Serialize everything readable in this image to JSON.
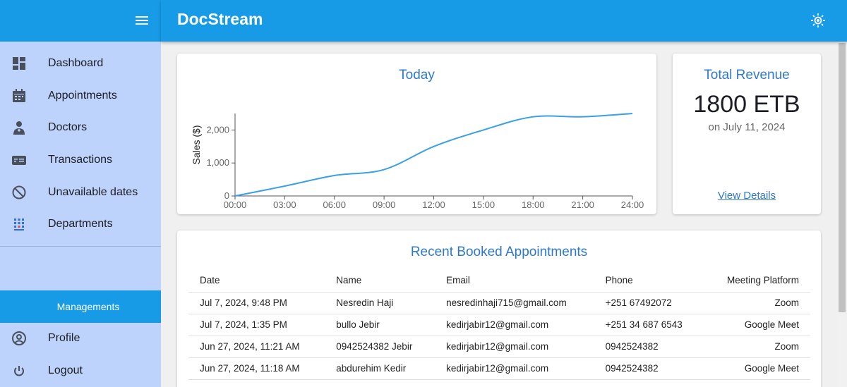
{
  "header": {
    "title": "DocStream"
  },
  "sidebar": {
    "items": [
      {
        "label": "Dashboard",
        "icon": "dashboard-icon"
      },
      {
        "label": "Appointments",
        "icon": "calendar-icon"
      },
      {
        "label": "Doctors",
        "icon": "doctor-icon"
      },
      {
        "label": "Transactions",
        "icon": "card-icon"
      },
      {
        "label": "Unavailable dates",
        "icon": "block-icon"
      },
      {
        "label": "Departments",
        "icon": "departments-icon"
      }
    ],
    "managements_label": "Managements",
    "profile_label": "Profile",
    "logout_label": "Logout"
  },
  "chart_card": {
    "title": "Today"
  },
  "chart_data": {
    "type": "line",
    "title": "Today",
    "xlabel": "",
    "ylabel": "Sales ($)",
    "x": [
      "00:00",
      "03:00",
      "06:00",
      "09:00",
      "12:00",
      "15:00",
      "18:00",
      "21:00",
      "24:00"
    ],
    "y": [
      0,
      300,
      620,
      800,
      1500,
      2000,
      2400,
      2400,
      2500
    ],
    "xlim": [
      "00:00",
      "24:00"
    ],
    "ylim": [
      0,
      2500
    ],
    "yticks": [
      "0",
      "1,000",
      "2,000"
    ],
    "grid": false,
    "color": "#3aa0e3"
  },
  "revenue": {
    "title": "Total Revenue",
    "amount": "1800 ETB",
    "date": "on July 11, 2024",
    "link": "View Details"
  },
  "appointments": {
    "title": "Recent Booked Appointments",
    "columns": [
      "Date",
      "Name",
      "Email",
      "Phone",
      "Meeting Platform"
    ],
    "rows": [
      [
        "Jul 7, 2024, 9:48 PM",
        "Nesredin Haji",
        "nesredinhaji715@gmail.com",
        "+251 67492072",
        "Zoom"
      ],
      [
        "Jul 7, 2024, 1:35 PM",
        "bullo Jebir",
        "kedirjabir12@gmail.com",
        "+251 34 687 6543",
        "Google Meet"
      ],
      [
        "Jun 27, 2024, 11:21 AM",
        "0942524382 Jebir",
        "kedirjabir12@gmail.com",
        "0942524382",
        "Zoom"
      ],
      [
        "Jun 27, 2024, 11:18 AM",
        "abdurehim Kedir",
        "kedirjabir12@gmail.com",
        "0942524382",
        "Google Meet"
      ]
    ]
  },
  "colors": {
    "primary": "#179be7",
    "sidebar": "#bed3fb",
    "accent_text": "#2f79c9"
  }
}
